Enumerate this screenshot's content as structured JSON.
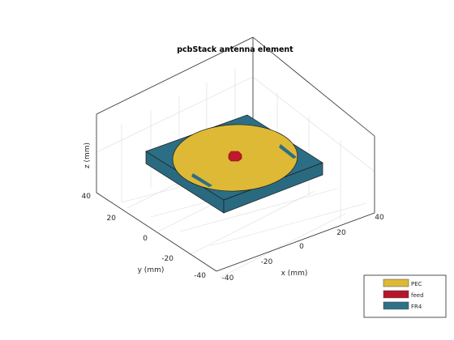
{
  "figure": {
    "title": "pcbStack antenna element"
  },
  "axes": {
    "xlabel": "x (mm)",
    "ylabel": "y (mm)",
    "zlabel": "z (mm)",
    "x_ticks": [
      "-40",
      "-20",
      "0",
      "20",
      "40"
    ],
    "y_ticks": [
      "40",
      "20",
      "0",
      "-20",
      "-40"
    ],
    "z_ticks": [],
    "grid": true
  },
  "legend": {
    "items": [
      {
        "label": "PEC",
        "color": "#DDB935"
      },
      {
        "label": "feed",
        "color": "#B5162A"
      },
      {
        "label": "FR4",
        "color": "#2E7288"
      }
    ]
  },
  "colors": {
    "pec": "#DDB935",
    "feed": "#C0182C",
    "fr4_top": "#2C6E85",
    "fr4_side": "#2A6A80",
    "grid": "#D8D8D8",
    "axis": "#262626"
  }
}
